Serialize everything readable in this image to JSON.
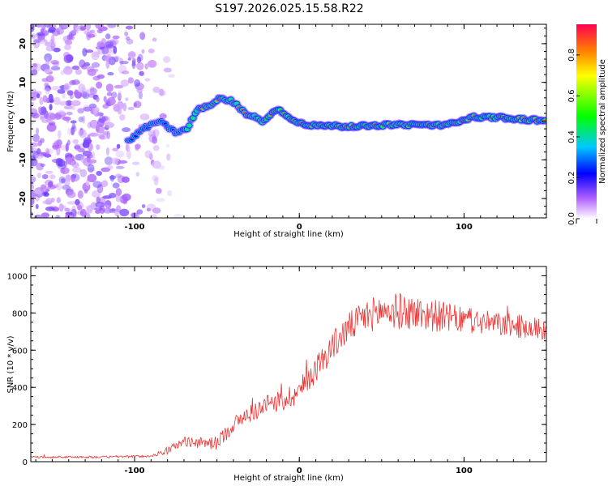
{
  "figure_title": "S197.2026.025.15.58.R22",
  "chart_data": [
    {
      "type": "heatmap",
      "name": "spectrogram",
      "xlabel": "Height of straight line (km)",
      "ylabel": "Frequency (Hz)",
      "xlim": [
        -163,
        150
      ],
      "ylim": [
        -25,
        25
      ],
      "xticks": [
        -100,
        0,
        100
      ],
      "yticks": [
        -20,
        -10,
        0,
        10,
        20
      ],
      "ridge": {
        "x": [
          -103,
          -95,
          -85,
          -75,
          -68,
          -62,
          -55,
          -48,
          -40,
          -33,
          -27,
          -22,
          -17,
          -12,
          -7,
          -2,
          5,
          15,
          30,
          50,
          70,
          90,
          105,
          120,
          135,
          150
        ],
        "freq": [
          -5,
          -2,
          0,
          -3,
          -2,
          3,
          4,
          6,
          5,
          2,
          1,
          0,
          2,
          3,
          1,
          0,
          -1,
          -1,
          -1.5,
          -1,
          -1,
          -1,
          1,
          1,
          0.5,
          0
        ]
      },
      "colorbar": {
        "label": "Normalized spectral amplitude",
        "range": [
          0,
          0.95
        ],
        "ticks": [
          "0.0",
          "0.2",
          "0.4",
          "0.6",
          "0.8"
        ],
        "tick_values": [
          0,
          0.2,
          0.4,
          0.6,
          0.8
        ],
        "stops": [
          {
            "v": 0.0,
            "color": "#ffffff"
          },
          {
            "v": 0.1,
            "color": "#b060ff"
          },
          {
            "v": 0.22,
            "color": "#0000ff"
          },
          {
            "v": 0.35,
            "color": "#00c8ff"
          },
          {
            "v": 0.5,
            "color": "#00ff00"
          },
          {
            "v": 0.7,
            "color": "#ffff00"
          },
          {
            "v": 0.82,
            "color": "#ff8000"
          },
          {
            "v": 0.95,
            "color": "#ff0050"
          }
        ]
      }
    },
    {
      "type": "line",
      "name": "snr",
      "xlabel": "Height of straight line (km)",
      "ylabel": "SNR (10 * v/v)",
      "xlim": [
        -163,
        150
      ],
      "ylim": [
        0,
        1050
      ],
      "xticks": [
        -100,
        0,
        100
      ],
      "yticks": [
        0,
        200,
        400,
        600,
        800,
        1000
      ],
      "color": "#ee3333",
      "trend": {
        "x": [
          -163,
          -120,
          -90,
          -80,
          -70,
          -60,
          -50,
          -40,
          -30,
          -20,
          -10,
          0,
          10,
          20,
          30,
          40,
          50,
          60,
          80,
          100,
          120,
          140,
          150
        ],
        "y": [
          25,
          25,
          30,
          60,
          110,
          100,
          100,
          200,
          260,
          300,
          330,
          380,
          500,
          620,
          720,
          780,
          810,
          810,
          790,
          760,
          740,
          720,
          710
        ]
      },
      "noise": {
        "x": [
          -163,
          -90,
          -80,
          -60,
          -40,
          -20,
          0,
          20,
          40,
          60,
          80,
          100,
          150
        ],
        "amp": [
          5,
          6,
          20,
          30,
          45,
          55,
          70,
          80,
          90,
          100,
          90,
          70,
          60
        ]
      }
    }
  ]
}
